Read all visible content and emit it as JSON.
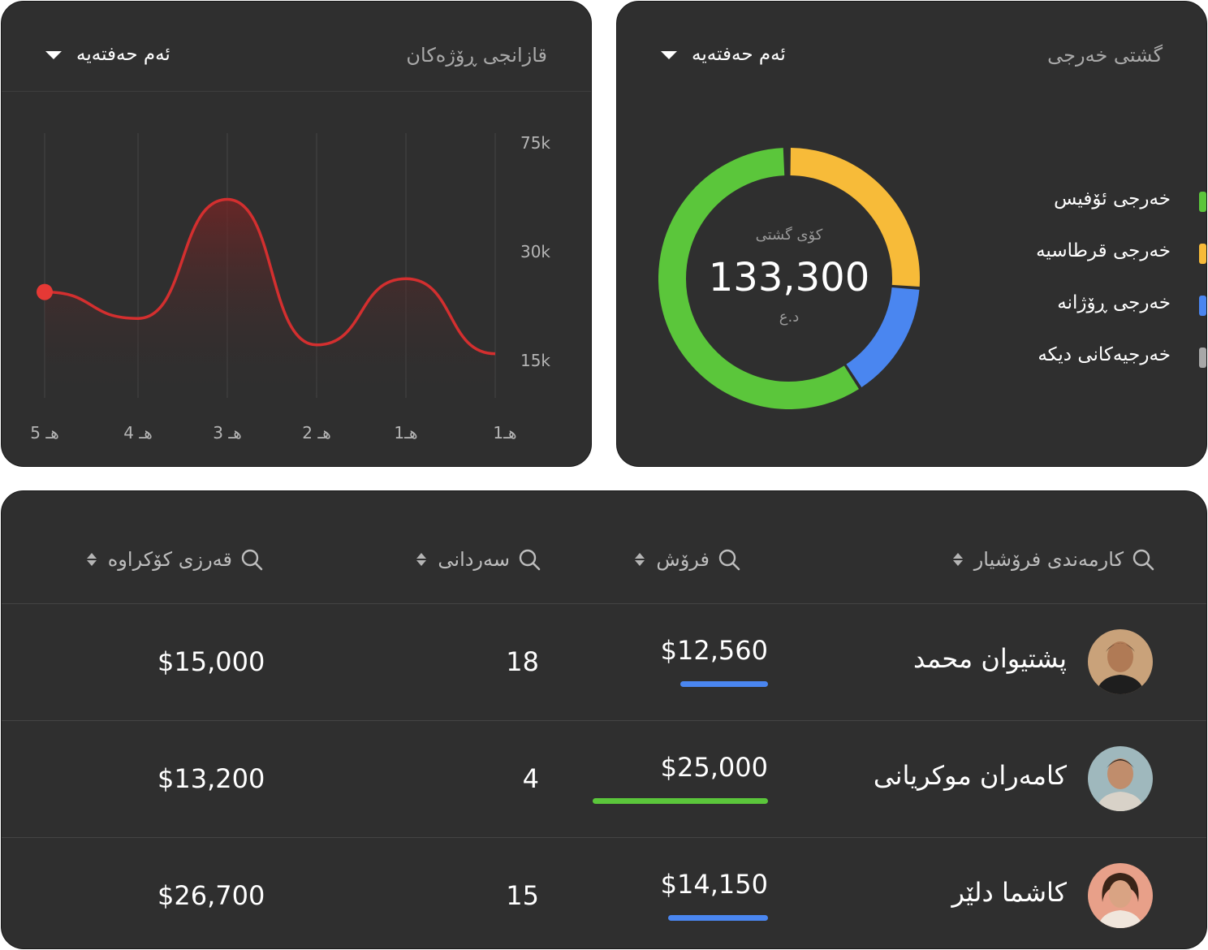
{
  "earnings_card": {
    "title": "قازانجی ڕۆژەکان",
    "period": "ئەم حەفتەیە",
    "chart_data": {
      "type": "line",
      "x_tick_labels": [
        "5 هـ",
        "4 هـ",
        "3 هـ",
        "2 هـ",
        "1هـ",
        "1هـ"
      ],
      "y_tick_labels": [
        "75k",
        "30k",
        "15k"
      ],
      "series": [
        {
          "values": [
            24,
            18,
            45,
            12,
            27,
            10
          ],
          "color": "#d32f2f"
        }
      ],
      "grid": "vertical",
      "area_fill": true
    }
  },
  "expense_card": {
    "title": "گشتی خەرجی",
    "period": "ئەم حەفتەیە",
    "total_caption": "کۆی گشتی",
    "total_value": "133,300",
    "total_unit": "د.ع",
    "chart_data": {
      "type": "pie",
      "labels": [
        "خەرجی ئۆفیس",
        "خەرجی قرطاسیە",
        "خەرجی ڕۆژانە",
        "خەرجیەکانی دیکە"
      ],
      "values": [
        56,
        25,
        14,
        0.5
      ],
      "colors": [
        "#5bc63b",
        "#f7bb39",
        "#4a86f0",
        "#a8a8a8"
      ]
    },
    "legend": [
      {
        "label": "خەرجی ئۆفیس",
        "color": "#5bc63b"
      },
      {
        "label": "خەرجی قرطاسیە",
        "color": "#f7bb39"
      },
      {
        "label": "خەرجی ڕۆژانە",
        "color": "#4a86f0"
      },
      {
        "label": "خەرجیەکانی دیکە",
        "color": "#a8a8a8"
      }
    ]
  },
  "table": {
    "columns": {
      "employee": "کارمەندی فرۆشیار",
      "sales": "فرۆش",
      "visits": "سەردانی",
      "debt": "قەرزی کۆکراوە"
    },
    "rows": [
      {
        "name": "پشتیوان محمد",
        "sales": "$12,560",
        "sales_fraction": 0.5,
        "bar_color": "#4a86f0",
        "visits": "18",
        "debt": "$15,000"
      },
      {
        "name": "کامەران موکریانی",
        "sales": "$25,000",
        "sales_fraction": 1.0,
        "bar_color": "#5bc63b",
        "visits": "4",
        "debt": "$13,200"
      },
      {
        "name": "کاشما دلێر",
        "sales": "$14,150",
        "sales_fraction": 0.57,
        "bar_color": "#4a86f0",
        "visits": "15",
        "debt": "$26,700"
      }
    ]
  }
}
